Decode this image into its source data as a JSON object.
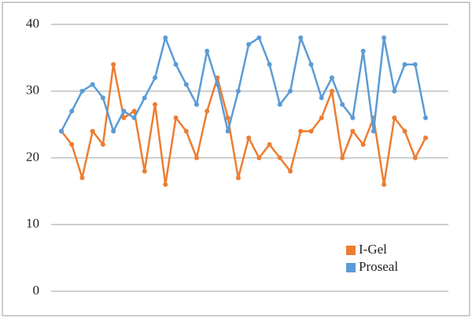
{
  "chart_data": {
    "type": "line",
    "series": [
      {
        "name": "I-Gel",
        "color": "#ed7d31",
        "values": [
          24,
          22,
          17,
          24,
          22,
          34,
          26,
          27,
          18,
          28,
          16,
          26,
          24,
          20,
          27,
          32,
          26,
          17,
          23,
          20,
          22,
          20,
          18,
          24,
          24,
          26,
          30,
          20,
          24,
          22,
          26,
          16,
          26,
          24,
          20,
          23
        ]
      },
      {
        "name": "Proseal",
        "color": "#5b9bd5",
        "values": [
          24,
          27,
          30,
          31,
          29,
          24,
          27,
          26,
          29,
          32,
          38,
          34,
          31,
          28,
          36,
          31,
          24,
          30,
          37,
          38,
          34,
          28,
          30,
          38,
          34,
          29,
          32,
          28,
          26,
          36,
          24,
          38,
          30,
          34,
          34,
          26
        ]
      }
    ],
    "ylim": [
      0,
      40
    ],
    "yticks": [
      0,
      10,
      20,
      30,
      40
    ],
    "grid": true
  }
}
